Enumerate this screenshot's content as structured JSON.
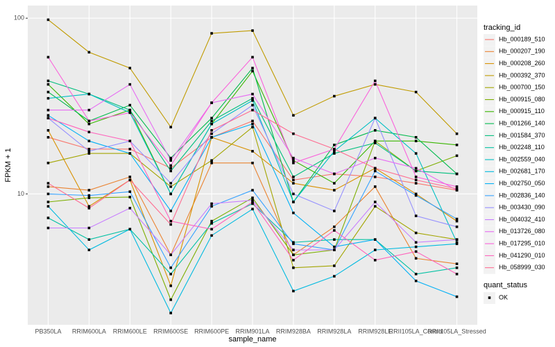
{
  "chart_data": {
    "type": "line",
    "x_label": "sample_name",
    "y_label": "FPKM + 1",
    "log_y": true,
    "grid": true,
    "legend_title": "tracking_id",
    "legend_position": "right",
    "categories": [
      "PB350LA",
      "RRIM600LA",
      "RRIM600LE",
      "RRIM600SE",
      "RRIM600PE",
      "RRIM901LA",
      "RRIM928BA",
      "RRIM928LA",
      "RRIM928LE",
      "RRII105LA_Control",
      "RRII105LA_Stressed"
    ],
    "ylim": [
      1.8,
      118
    ],
    "yticks": [
      10,
      100
    ],
    "point_color": "#000000",
    "shape_legend": {
      "title": "quant_status",
      "levels": [
        "OK"
      ]
    },
    "series": [
      {
        "name": "Hb_000189_510",
        "color": "#F8766D",
        "values": [
          21,
          18,
          18,
          14,
          21,
          26,
          12,
          13,
          12.5,
          11.5,
          10.5
        ]
      },
      {
        "name": "Hb_000207_190",
        "color": "#EA8331",
        "values": [
          11,
          10.5,
          12.5,
          4.5,
          15,
          15,
          4.5,
          6.5,
          11,
          4.3,
          4.0
        ]
      },
      {
        "name": "Hb_000208_260",
        "color": "#D89000",
        "values": [
          23,
          8.5,
          12,
          3.0,
          21,
          17.5,
          11.5,
          10.5,
          14,
          10,
          7
        ]
      },
      {
        "name": "Hb_000392_370",
        "color": "#C09B00",
        "values": [
          98,
          64,
          52,
          24,
          82,
          85,
          28,
          36,
          42,
          38,
          22
        ]
      },
      {
        "name": "Hb_000700_150",
        "color": "#A3A500",
        "values": [
          15,
          17,
          17,
          11,
          15.5,
          24,
          3.8,
          3.9,
          8.5,
          6,
          5.5
        ]
      },
      {
        "name": "Hb_000915_080",
        "color": "#7CAE00",
        "values": [
          9,
          9.5,
          9.6,
          2.5,
          7,
          9.5,
          4.5,
          4.8,
          20,
          13.5,
          16.5
        ]
      },
      {
        "name": "Hb_000915_110",
        "color": "#39B600",
        "values": [
          42,
          25,
          30,
          10,
          25,
          50,
          15.5,
          11.5,
          20,
          20,
          19
        ]
      },
      {
        "name": "Hb_001266_140",
        "color": "#00BB4E",
        "values": [
          38,
          26,
          32,
          16,
          27,
          52,
          9,
          19,
          23,
          21,
          13
        ]
      },
      {
        "name": "Hb_001584_370",
        "color": "#00BF7D",
        "values": [
          44,
          37,
          30,
          13.5,
          26,
          35,
          12.5,
          17,
          19.5,
          13.5,
          13
        ]
      },
      {
        "name": "Hb_002248_110",
        "color": "#00C1A3",
        "values": [
          7.3,
          5.5,
          6.3,
          3.5,
          6.8,
          8.8,
          5.3,
          5.5,
          5.5,
          3.5,
          3.8
        ]
      },
      {
        "name": "Hb_002559_040",
        "color": "#00BFC4",
        "values": [
          35,
          37,
          29,
          10,
          25,
          34,
          9,
          17.5,
          27,
          17,
          5.3
        ]
      },
      {
        "name": "Hb_002681_170",
        "color": "#00BAE0",
        "values": [
          8.5,
          4.8,
          6.3,
          2.1,
          5.8,
          8.2,
          2.8,
          3.4,
          4.8,
          5.0,
          5.2
        ]
      },
      {
        "name": "Hb_002750_050",
        "color": "#00B0F6",
        "values": [
          28,
          20,
          17,
          8,
          21,
          25,
          7.8,
          5.0,
          5.5,
          3.2,
          2.6
        ]
      },
      {
        "name": "Hb_002836_140",
        "color": "#35A2FF",
        "values": [
          10,
          9.8,
          10.3,
          3.8,
          8.5,
          10.5,
          5.2,
          4.8,
          13.5,
          9.8,
          7.2
        ]
      },
      {
        "name": "Hb_003430_090",
        "color": "#9590FF",
        "values": [
          27,
          17.5,
          20,
          11.5,
          22,
          32,
          10,
          8,
          27,
          7.5,
          6.5
        ]
      },
      {
        "name": "Hb_004032_410",
        "color": "#C77CFF",
        "values": [
          6.4,
          6.4,
          8.3,
          4.5,
          8.8,
          9.2,
          4.8,
          4.8,
          9,
          5.3,
          5.5
        ]
      },
      {
        "name": "Hb_013726_080",
        "color": "#E76BF3",
        "values": [
          30,
          30,
          42,
          15.5,
          33,
          37,
          16,
          13,
          16,
          14,
          10.5
        ]
      },
      {
        "name": "Hb_017295_010",
        "color": "#FA62DB",
        "values": [
          60,
          26,
          29,
          14.5,
          33,
          60,
          15,
          18,
          44,
          12.5,
          11
        ]
      },
      {
        "name": "Hb_041290_010",
        "color": "#FF62BC",
        "values": [
          27,
          22.5,
          20,
          7,
          6.3,
          9,
          4.2,
          6.2,
          4.2,
          4.7,
          3.5
        ]
      },
      {
        "name": "Hb_058999_030",
        "color": "#FF6C91",
        "values": [
          11.5,
          8.3,
          12,
          6.7,
          23,
          30,
          22,
          18,
          14,
          12,
          10.7
        ]
      }
    ]
  }
}
